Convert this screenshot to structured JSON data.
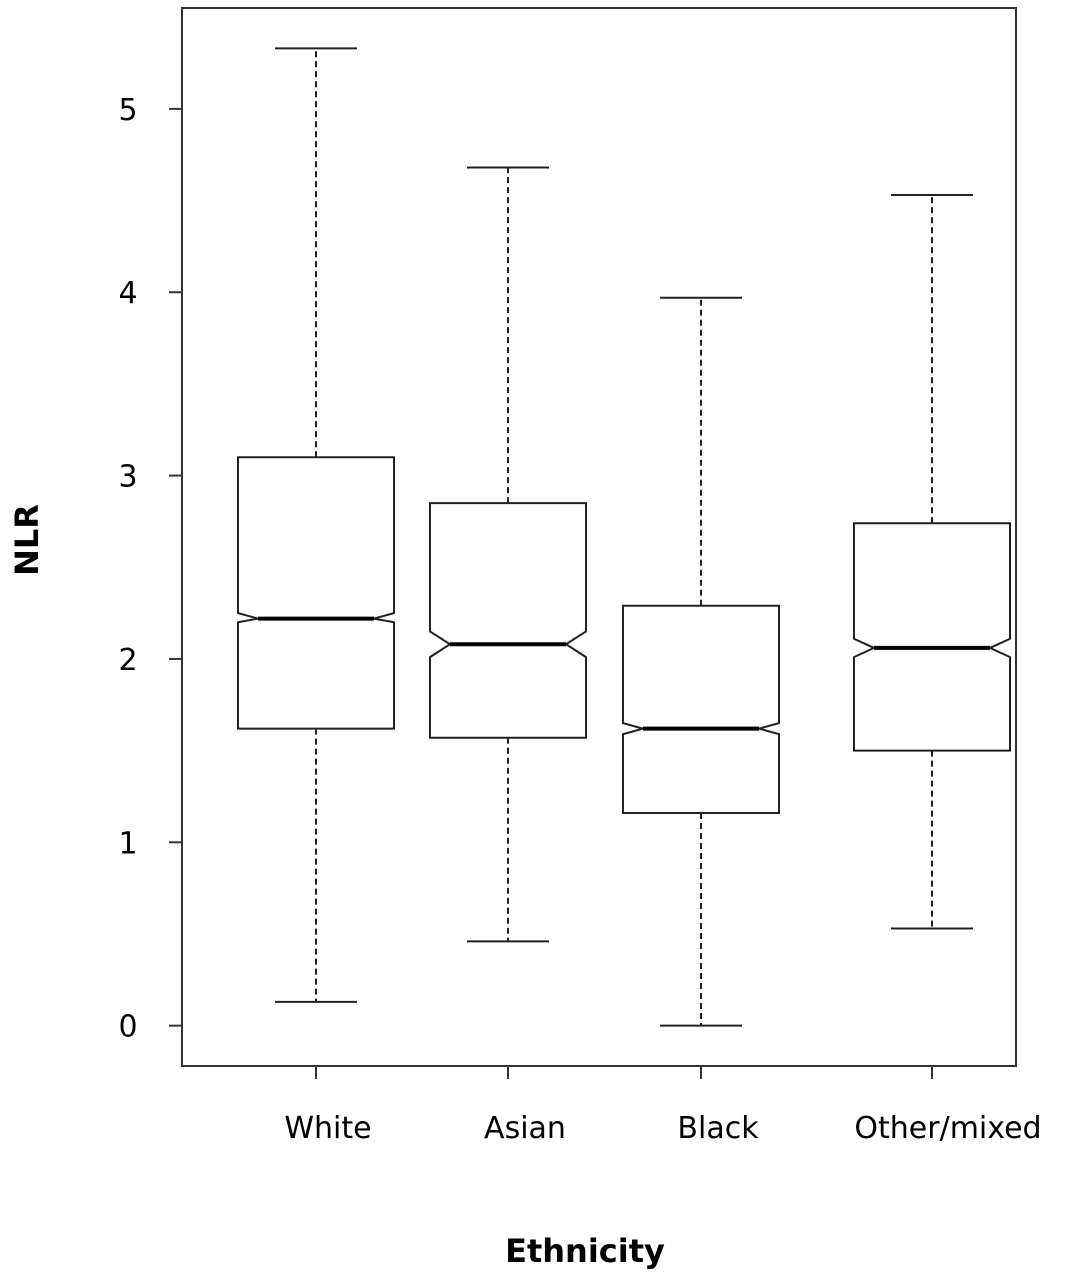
{
  "chart_data": {
    "type": "boxplot",
    "title": "",
    "xlabel": "Ethnicity",
    "ylabel": "NLR",
    "ylim": [
      -0.22,
      5.55
    ],
    "yticks": [
      0,
      1,
      2,
      3,
      4,
      5
    ],
    "notched": true,
    "grid": false,
    "categories": [
      "White",
      "Asian",
      "Black",
      "Other/mixed"
    ],
    "boxes": [
      {
        "category": "White",
        "whisker_low": 0.13,
        "q1": 1.62,
        "median": 2.22,
        "q3": 3.1,
        "whisker_high": 5.33,
        "notch_low": 2.2,
        "notch_high": 2.25
      },
      {
        "category": "Asian",
        "whisker_low": 0.46,
        "q1": 1.57,
        "median": 2.08,
        "q3": 2.85,
        "whisker_high": 4.68,
        "notch_low": 2.01,
        "notch_high": 2.15
      },
      {
        "category": "Black",
        "whisker_low": 0.0,
        "q1": 1.16,
        "median": 1.62,
        "q3": 2.29,
        "whisker_high": 3.97,
        "notch_low": 1.59,
        "notch_high": 1.65
      },
      {
        "category": "Other/mixed",
        "whisker_low": 0.53,
        "q1": 1.5,
        "median": 2.06,
        "q3": 2.74,
        "whisker_high": 4.53,
        "notch_low": 2.01,
        "notch_high": 2.11
      }
    ]
  }
}
